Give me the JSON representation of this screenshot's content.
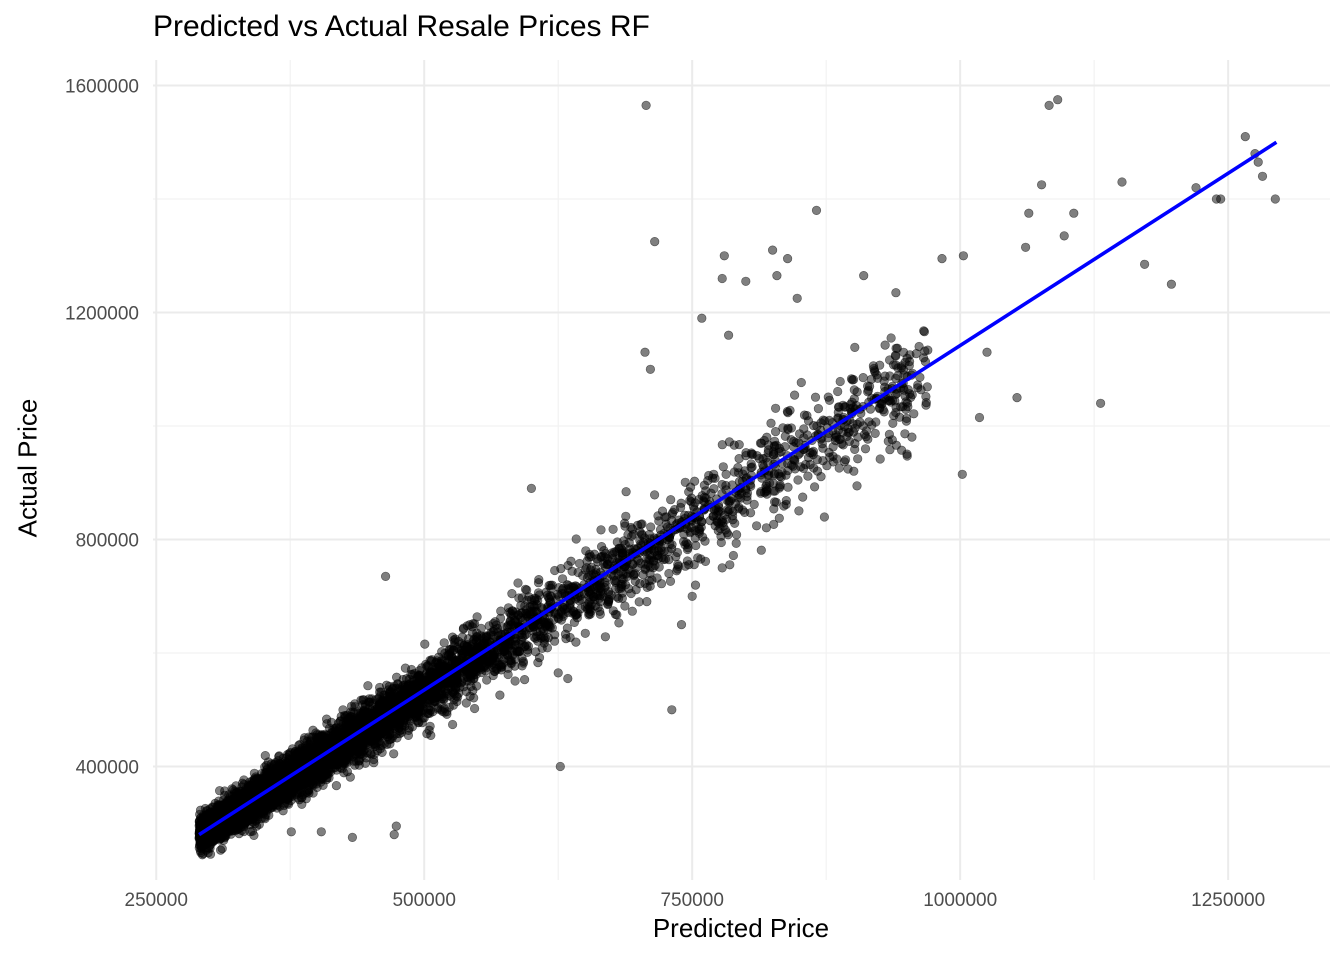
{
  "chart_data": {
    "type": "scatter",
    "title": "Predicted vs Actual Resale Prices RF",
    "xlabel": "Predicted Price",
    "ylabel": "Actual Price",
    "xlim": [
      247000,
      1345000
    ],
    "ylim": [
      200000,
      1645000
    ],
    "x_ticks": [
      250000,
      500000,
      750000,
      1000000,
      1250000
    ],
    "x_tick_labels": [
      "250000",
      "500000",
      "750000",
      "1000000",
      "1250000"
    ],
    "y_ticks": [
      400000,
      800000,
      1200000,
      1600000
    ],
    "y_tick_labels": [
      "400000",
      "800000",
      "1200000",
      "1600000"
    ],
    "grid": true,
    "legend": "none",
    "point_color": "#000000",
    "point_alpha": 0.5,
    "fit_line_color": "#0000ff",
    "fit_line": {
      "x": [
        290000,
        1295000
      ],
      "y": [
        280000,
        1500000
      ]
    },
    "n_points_approx": 6000,
    "point_cloud_model": {
      "slope": 1.2,
      "intercept": -68000,
      "x_min": 290000,
      "x_max": 1010000
    },
    "outliers": [
      [
        707000,
        1565000
      ],
      [
        1083000,
        1565000
      ],
      [
        1091000,
        1575000
      ],
      [
        715000,
        1325000
      ],
      [
        1266000,
        1510000
      ],
      [
        1275000,
        1480000
      ],
      [
        1278000,
        1465000
      ],
      [
        1282000,
        1440000
      ],
      [
        1294000,
        1400000
      ],
      [
        1239000,
        1400000
      ],
      [
        1243000,
        1400000
      ],
      [
        1220000,
        1420000
      ],
      [
        1151000,
        1430000
      ],
      [
        1076000,
        1425000
      ],
      [
        1064000,
        1375000
      ],
      [
        1106000,
        1375000
      ],
      [
        1097000,
        1335000
      ],
      [
        1061000,
        1315000
      ],
      [
        1172000,
        1285000
      ],
      [
        1197000,
        1250000
      ],
      [
        1131000,
        1040000
      ],
      [
        1002000,
        915000
      ],
      [
        1018000,
        1015000
      ],
      [
        983000,
        1295000
      ],
      [
        1003000,
        1300000
      ],
      [
        1025000,
        1130000
      ],
      [
        1053000,
        1050000
      ],
      [
        866000,
        1380000
      ],
      [
        839000,
        1295000
      ],
      [
        759000,
        1190000
      ],
      [
        800000,
        1255000
      ],
      [
        706000,
        1130000
      ],
      [
        711000,
        1100000
      ],
      [
        829000,
        1265000
      ],
      [
        848000,
        1225000
      ],
      [
        825000,
        1310000
      ],
      [
        778000,
        1260000
      ],
      [
        780000,
        1300000
      ],
      [
        784000,
        1160000
      ],
      [
        464000,
        735000
      ],
      [
        433000,
        275000
      ],
      [
        472000,
        280000
      ],
      [
        474000,
        295000
      ],
      [
        404000,
        285000
      ],
      [
        305000,
        280000
      ],
      [
        313000,
        270000
      ],
      [
        376000,
        285000
      ],
      [
        627000,
        400000
      ],
      [
        731000,
        500000
      ],
      [
        625000,
        565000
      ],
      [
        634000,
        555000
      ],
      [
        600000,
        890000
      ],
      [
        740000,
        650000
      ],
      [
        750000,
        700000
      ],
      [
        940000,
        1235000
      ],
      [
        910000,
        1265000
      ]
    ]
  }
}
